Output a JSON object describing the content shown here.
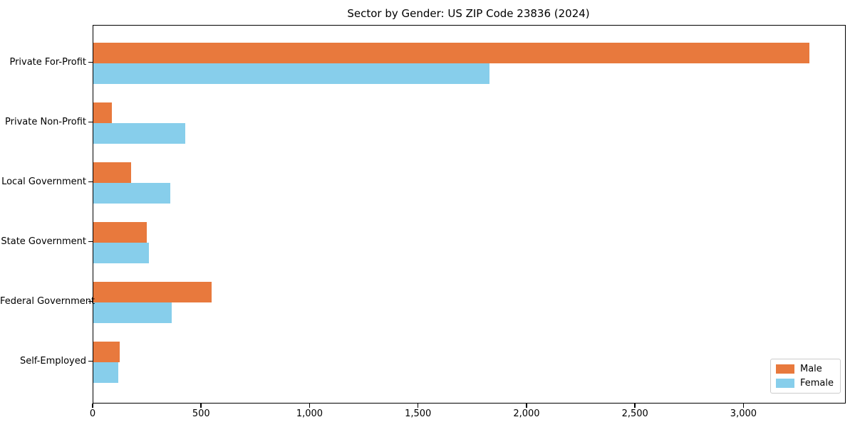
{
  "chart_data": {
    "type": "bar",
    "orientation": "horizontal",
    "title": "Sector by Gender: US ZIP Code 23836 (2024)",
    "categories": [
      "Private For-Profit",
      "Private Non-Profit",
      "Local Government",
      "State Government",
      "Federal Government",
      "Self-Employed"
    ],
    "series": [
      {
        "name": "Male",
        "color": "#e8793d",
        "values": [
          3300,
          85,
          175,
          245,
          545,
          120
        ]
      },
      {
        "name": "Female",
        "color": "#87ceeb",
        "values": [
          1825,
          425,
          355,
          255,
          360,
          115
        ]
      }
    ],
    "xlabel": "",
    "ylabel": "",
    "xlim": [
      0,
      3465
    ],
    "xticks": [
      0,
      500,
      1000,
      1500,
      2000,
      2500,
      3000
    ],
    "xtick_labels": [
      "0",
      "500",
      "1,000",
      "1,500",
      "2,000",
      "2,500",
      "3,000"
    ],
    "grid": false,
    "legend": {
      "position": "lower-right",
      "items": [
        {
          "label": "Male",
          "color": "#e8793d"
        },
        {
          "label": "Female",
          "color": "#87ceeb"
        }
      ]
    }
  }
}
